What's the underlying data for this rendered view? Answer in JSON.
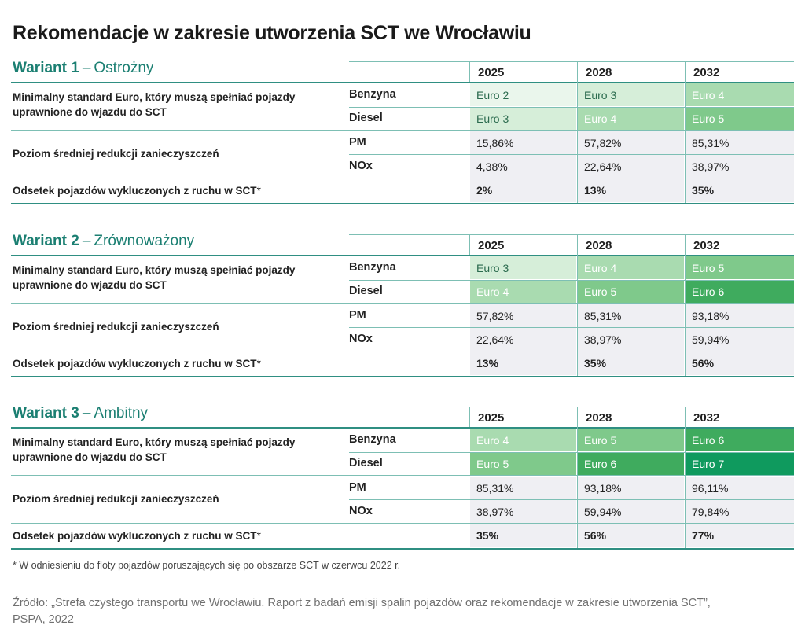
{
  "title": "Rekomendacje w zakresie utworzenia SCT we Wrocławiu",
  "years": [
    "2025",
    "2028",
    "2032"
  ],
  "labels": {
    "euro_row": "Minimalny standard Euro, który muszą spełniać pojazdy uprawnione do wjazdu do SCT",
    "benzyna": "Benzyna",
    "diesel": "Diesel",
    "reduction_row": "Poziom średniej redukcji zanieczyszczeń",
    "pm": "PM",
    "nox": "NOx",
    "excluded_row": "Odsetek pojazdów wykluczonych z ruchu w SCT",
    "star": "*"
  },
  "variants": [
    {
      "name": "Wariant 1",
      "dash": "–",
      "subtitle": "Ostrożny",
      "benzyna": [
        "Euro 2",
        "Euro 3",
        "Euro 4"
      ],
      "diesel": [
        "Euro 3",
        "Euro 4",
        "Euro 5"
      ],
      "pm": [
        "15,86%",
        "57,82%",
        "85,31%"
      ],
      "nox": [
        "4,38%",
        "22,64%",
        "38,97%"
      ],
      "excluded": [
        "2%",
        "13%",
        "35%"
      ]
    },
    {
      "name": "Wariant 2",
      "dash": "–",
      "subtitle": "Zrównoważony",
      "benzyna": [
        "Euro 3",
        "Euro 4",
        "Euro 5"
      ],
      "diesel": [
        "Euro 4",
        "Euro 5",
        "Euro 6"
      ],
      "pm": [
        "57,82%",
        "85,31%",
        "93,18%"
      ],
      "nox": [
        "22,64%",
        "38,97%",
        "59,94%"
      ],
      "excluded": [
        "13%",
        "35%",
        "56%"
      ]
    },
    {
      "name": "Wariant 3",
      "dash": "–",
      "subtitle": "Ambitny",
      "benzyna": [
        "Euro 4",
        "Euro 5",
        "Euro 6"
      ],
      "diesel": [
        "Euro 5",
        "Euro 6",
        "Euro 7"
      ],
      "pm": [
        "85,31%",
        "93,18%",
        "96,11%"
      ],
      "nox": [
        "38,97%",
        "59,94%",
        "79,84%"
      ],
      "excluded": [
        "35%",
        "56%",
        "77%"
      ]
    }
  ],
  "euro_colors": {
    "Euro 2": "#eaf6ec",
    "Euro 3": "#d6eed9",
    "Euro 4": "#a9dbb0",
    "Euro 5": "#7fc98b",
    "Euro 6": "#3fab5e",
    "Euro 7": "#0f9a5e"
  },
  "footnote": "* W odniesieniu do floty pojazdów poruszających się po obszarze SCT w czerwcu 2022 r.",
  "source": "Źródło: „Strefa czystego transportu we Wrocławiu. Raport z badań emisji spalin pojazdów oraz rekomendacje w zakresie utworzenia SCT”, PSPA, 2022"
}
